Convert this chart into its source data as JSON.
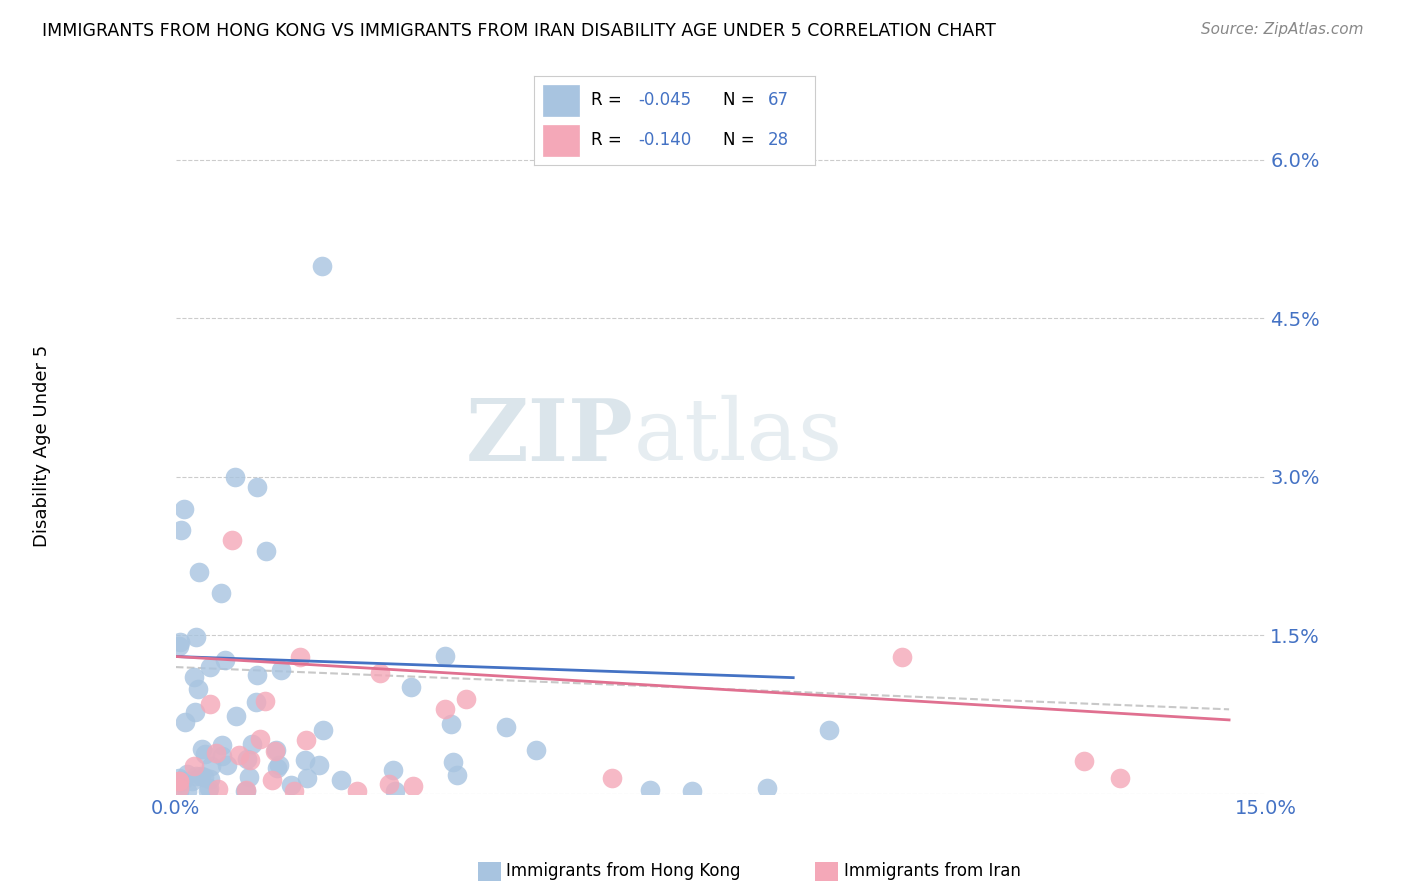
{
  "title": "IMMIGRANTS FROM HONG KONG VS IMMIGRANTS FROM IRAN DISABILITY AGE UNDER 5 CORRELATION CHART",
  "source": "Source: ZipAtlas.com",
  "ylabel": "Disability Age Under 5",
  "xlim": [
    0.0,
    0.15
  ],
  "ylim": [
    0.0,
    0.065
  ],
  "yticks": [
    0.0,
    0.015,
    0.03,
    0.045,
    0.06
  ],
  "ytick_labels": [
    "",
    "1.5%",
    "3.0%",
    "4.5%",
    "6.0%"
  ],
  "xticks": [
    0.0,
    0.15
  ],
  "xtick_labels": [
    "0.0%",
    "15.0%"
  ],
  "hk_color": "#a8c4e0",
  "iran_color": "#f4a8b8",
  "hk_line_color": "#4472c4",
  "iran_line_color": "#e07090",
  "ref_line_color": "#c8c8c8",
  "hk_R": -0.045,
  "hk_N": 67,
  "iran_R": -0.14,
  "iran_N": 28,
  "legend_text_color": "#4472c4",
  "watermark_color": "#d0dde8",
  "grid_color": "#cccccc",
  "background_color": "#ffffff",
  "hk_seed": 77,
  "iran_seed": 99
}
